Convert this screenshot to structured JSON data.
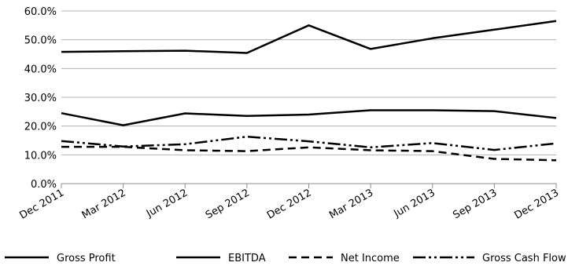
{
  "chart_data": {
    "type": "line",
    "categories": [
      "Dec 2011",
      "Mar 2012",
      "Jun 2012",
      "Sep 2012",
      "Dec 2012",
      "Mar 2013",
      "Jun 2013",
      "Sep 2013",
      "Dec 2013"
    ],
    "y_ticks": [
      "0.0%",
      "10.0%",
      "20.0%",
      "30.0%",
      "40.0%",
      "50.0%",
      "60.0%"
    ],
    "ylim": [
      0,
      60
    ],
    "y_unit": "%",
    "grid": "horizontal",
    "legend_position": "bottom",
    "series": [
      {
        "name": "Gross Profit",
        "line_style": "solid",
        "color": "#000000",
        "values": [
          45.8,
          46.0,
          46.2,
          45.4,
          55.0,
          46.8,
          50.5,
          53.5,
          56.5
        ]
      },
      {
        "name": "EBITDA",
        "line_style": "solid",
        "color": "#000000",
        "values": [
          24.5,
          20.3,
          24.4,
          23.5,
          24.0,
          25.5,
          25.5,
          25.2,
          22.8
        ]
      },
      {
        "name": "Net Income",
        "line_style": "dashed",
        "color": "#000000",
        "values": [
          12.8,
          12.8,
          11.6,
          11.3,
          12.6,
          11.6,
          11.3,
          8.6,
          8.1
        ]
      },
      {
        "name": "Gross Cash Flow",
        "line_style": "dash-dot-dot",
        "color": "#000000",
        "values": [
          14.8,
          12.9,
          13.7,
          16.3,
          14.7,
          12.6,
          14.1,
          11.7,
          14.0
        ]
      }
    ]
  }
}
